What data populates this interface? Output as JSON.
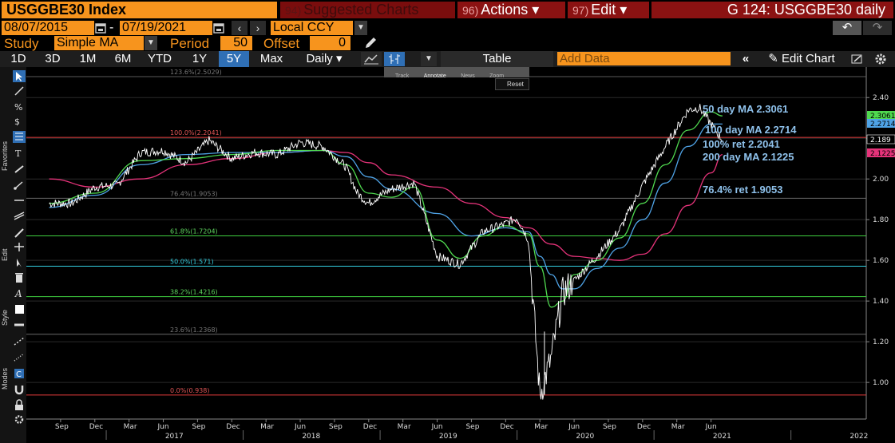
{
  "header": {
    "ticker": "USGGBE30 Index",
    "suggested_num": "94)",
    "suggested_label": "Suggested Charts",
    "actions_num": "96)",
    "actions_label": "Actions ▾",
    "edit_num": "97)",
    "edit_label": "Edit ▾",
    "title": "G 124: USGGBE30 daily"
  },
  "range": {
    "start": "08/07/2015",
    "dash": "-",
    "end": "07/19/2021",
    "currency": "Local CCY"
  },
  "study": {
    "study_label": "Study",
    "study_value": "Simple MA",
    "period_label": "Period",
    "period_value": "50",
    "offset_label": "Offset",
    "offset_value": "0"
  },
  "toolbar": {
    "timeframes": [
      "1D",
      "3D",
      "1M",
      "6M",
      "YTD",
      "1Y",
      "5Y",
      "Max"
    ],
    "selected": "5Y",
    "interval": "Daily ▾",
    "table_label": "Table",
    "add_data_placeholder": "Add Data",
    "edit_chart_label": "Edit Chart"
  },
  "popup": {
    "track": "Track",
    "annotate": "Annotate",
    "news": "News",
    "zoom": "Zoom",
    "reset": "Reset"
  },
  "sidebar_labels": {
    "favorites": "Favorites",
    "edit": "Edit",
    "style": "Style",
    "modes": "Modes"
  },
  "colors": {
    "price": "#ffffff",
    "ma50": "#4fd84f",
    "ma100": "#4fa3e6",
    "ma200": "#e6337a",
    "annotation": "#8fc2ec",
    "orange": "#f7941d"
  },
  "chart_data": {
    "type": "line",
    "ylim": [
      0.82,
      2.55
    ],
    "yticks": [
      1.0,
      1.2,
      1.4,
      1.6,
      1.8,
      2.0,
      2.2,
      2.4
    ],
    "ytick_labels": [
      "1.00",
      "1.20",
      "1.40",
      "1.60",
      "1.80",
      "2.00",
      "2.20",
      "2.40"
    ],
    "x_month_ticks": [
      "Sep",
      "Dec",
      "Mar",
      "Jun",
      "Sep",
      "Dec",
      "Mar",
      "Jun",
      "Sep",
      "Dec",
      "Mar",
      "Jun",
      "Sep",
      "Dec",
      "Mar",
      "Jun",
      "Sep",
      "Dec",
      "Mar",
      "Jun"
    ],
    "x_year_labels": [
      "2017",
      "2018",
      "2019",
      "2020",
      "2021",
      "2022"
    ],
    "series": [
      {
        "key": "price",
        "x": [
          "2016-08",
          "2016-10",
          "2016-12",
          "2017-02",
          "2017-04",
          "2017-06",
          "2017-08",
          "2017-10",
          "2017-12",
          "2018-02",
          "2018-04",
          "2018-06",
          "2018-08",
          "2018-10",
          "2018-11",
          "2018-12",
          "2019-01",
          "2019-02",
          "2019-04",
          "2019-06",
          "2019-08",
          "2019-10",
          "2019-12",
          "2020-01",
          "2020-02",
          "2020-03",
          "2020-04",
          "2020-05",
          "2020-06",
          "2020-08",
          "2020-10",
          "2020-12",
          "2021-02",
          "2021-04",
          "2021-05",
          "2021-07"
        ],
        "values": [
          1.88,
          1.88,
          1.96,
          1.97,
          2.13,
          2.14,
          2.08,
          2.19,
          2.1,
          2.13,
          2.12,
          2.18,
          2.16,
          2.06,
          1.93,
          1.88,
          1.92,
          1.95,
          1.98,
          1.62,
          1.58,
          1.74,
          1.78,
          1.81,
          1.7,
          0.94,
          1.12,
          1.44,
          1.5,
          1.62,
          1.75,
          1.97,
          2.16,
          2.34,
          2.35,
          2.19
        ]
      },
      {
        "name": "50 day MA",
        "key": "ma50",
        "x": [
          "2016-08",
          "2016-12",
          "2017-04",
          "2017-08",
          "2017-12",
          "2018-04",
          "2018-08",
          "2018-10",
          "2018-12",
          "2019-02",
          "2019-04",
          "2019-06",
          "2019-08",
          "2019-10",
          "2019-12",
          "2020-02",
          "2020-03",
          "2020-04",
          "2020-05",
          "2020-06",
          "2020-08",
          "2020-10",
          "2020-12",
          "2021-02",
          "2021-04",
          "2021-06",
          "2021-07"
        ],
        "values": [
          1.88,
          1.93,
          2.09,
          2.1,
          2.12,
          2.14,
          2.14,
          2.07,
          1.93,
          1.91,
          1.96,
          1.7,
          1.61,
          1.72,
          1.77,
          1.73,
          1.57,
          1.37,
          1.4,
          1.53,
          1.6,
          1.71,
          1.88,
          2.07,
          2.24,
          2.33,
          2.31
        ]
      },
      {
        "name": "100 day MA",
        "key": "ma100",
        "x": [
          "2016-08",
          "2016-12",
          "2017-04",
          "2017-08",
          "2017-12",
          "2018-04",
          "2018-08",
          "2018-10",
          "2018-12",
          "2019-02",
          "2019-06",
          "2019-09",
          "2019-12",
          "2020-02",
          "2020-03",
          "2020-04",
          "2020-05",
          "2020-06",
          "2020-08",
          "2020-10",
          "2020-12",
          "2021-02",
          "2021-04",
          "2021-06",
          "2021-07"
        ],
        "values": [
          1.86,
          1.92,
          2.07,
          2.12,
          2.13,
          2.13,
          2.14,
          2.11,
          2.01,
          1.95,
          1.83,
          1.72,
          1.76,
          1.74,
          1.62,
          1.53,
          1.46,
          1.46,
          1.56,
          1.66,
          1.8,
          1.98,
          2.16,
          2.27,
          2.27
        ]
      },
      {
        "name": "200 day MA",
        "key": "ma200",
        "x": [
          "2016-08",
          "2016-12",
          "2017-04",
          "2017-08",
          "2017-12",
          "2018-04",
          "2018-08",
          "2018-10",
          "2018-12",
          "2019-02",
          "2019-06",
          "2019-09",
          "2019-12",
          "2020-02",
          "2020-04",
          "2020-06",
          "2020-08",
          "2020-10",
          "2020-12",
          "2021-02",
          "2021-04",
          "2021-06",
          "2021-07"
        ],
        "values": [
          2.0,
          1.96,
          2.0,
          2.07,
          2.1,
          2.13,
          2.14,
          2.13,
          2.08,
          2.02,
          1.96,
          1.88,
          1.81,
          1.76,
          1.68,
          1.62,
          1.61,
          1.6,
          1.63,
          1.73,
          1.87,
          2.03,
          2.12
        ]
      }
    ],
    "fibonacci": [
      {
        "label": "123.6%(2.5029)",
        "value": 2.5029,
        "color": "#5a5a5a"
      },
      {
        "label": "100.0%(2.2041)",
        "value": 2.2041,
        "color": "#e23b3b"
      },
      {
        "label": "76.4%(1.9053)",
        "value": 1.9053,
        "color": "#6a6a6a"
      },
      {
        "label": "61.8%(1.7204)",
        "value": 1.7204,
        "color": "#3fcf3f"
      },
      {
        "label": "50.0%(1.571)",
        "value": 1.571,
        "color": "#33cfe0"
      },
      {
        "label": "38.2%(1.4216)",
        "value": 1.4216,
        "color": "#3fcf3f"
      },
      {
        "label": "23.6%(1.2368)",
        "value": 1.2368,
        "color": "#6a6a6a"
      },
      {
        "label": "0.0%(0.938)",
        "value": 0.938,
        "color": "#e23b3b"
      }
    ],
    "annotations": [
      {
        "text": "50 day MA 2.3061",
        "value": 2.3061
      },
      {
        "text": "100 day MA 2.2714",
        "value": 2.2714
      },
      {
        "text": "100% ret 2.2041",
        "value": 2.2041
      },
      {
        "text": "200 day MA 2.1225",
        "value": 2.1225
      },
      {
        "text": "76.4% ret 1.9053",
        "value": 1.9053
      }
    ],
    "last_values": [
      {
        "text": "2.3061",
        "value": 2.3061,
        "key": "ma50"
      },
      {
        "text": "2.2714",
        "value": 2.2714,
        "key": "ma100"
      },
      {
        "text": "2.189",
        "value": 2.189,
        "key": "price"
      },
      {
        "text": "2.1225",
        "value": 2.1225,
        "key": "ma200"
      }
    ]
  }
}
